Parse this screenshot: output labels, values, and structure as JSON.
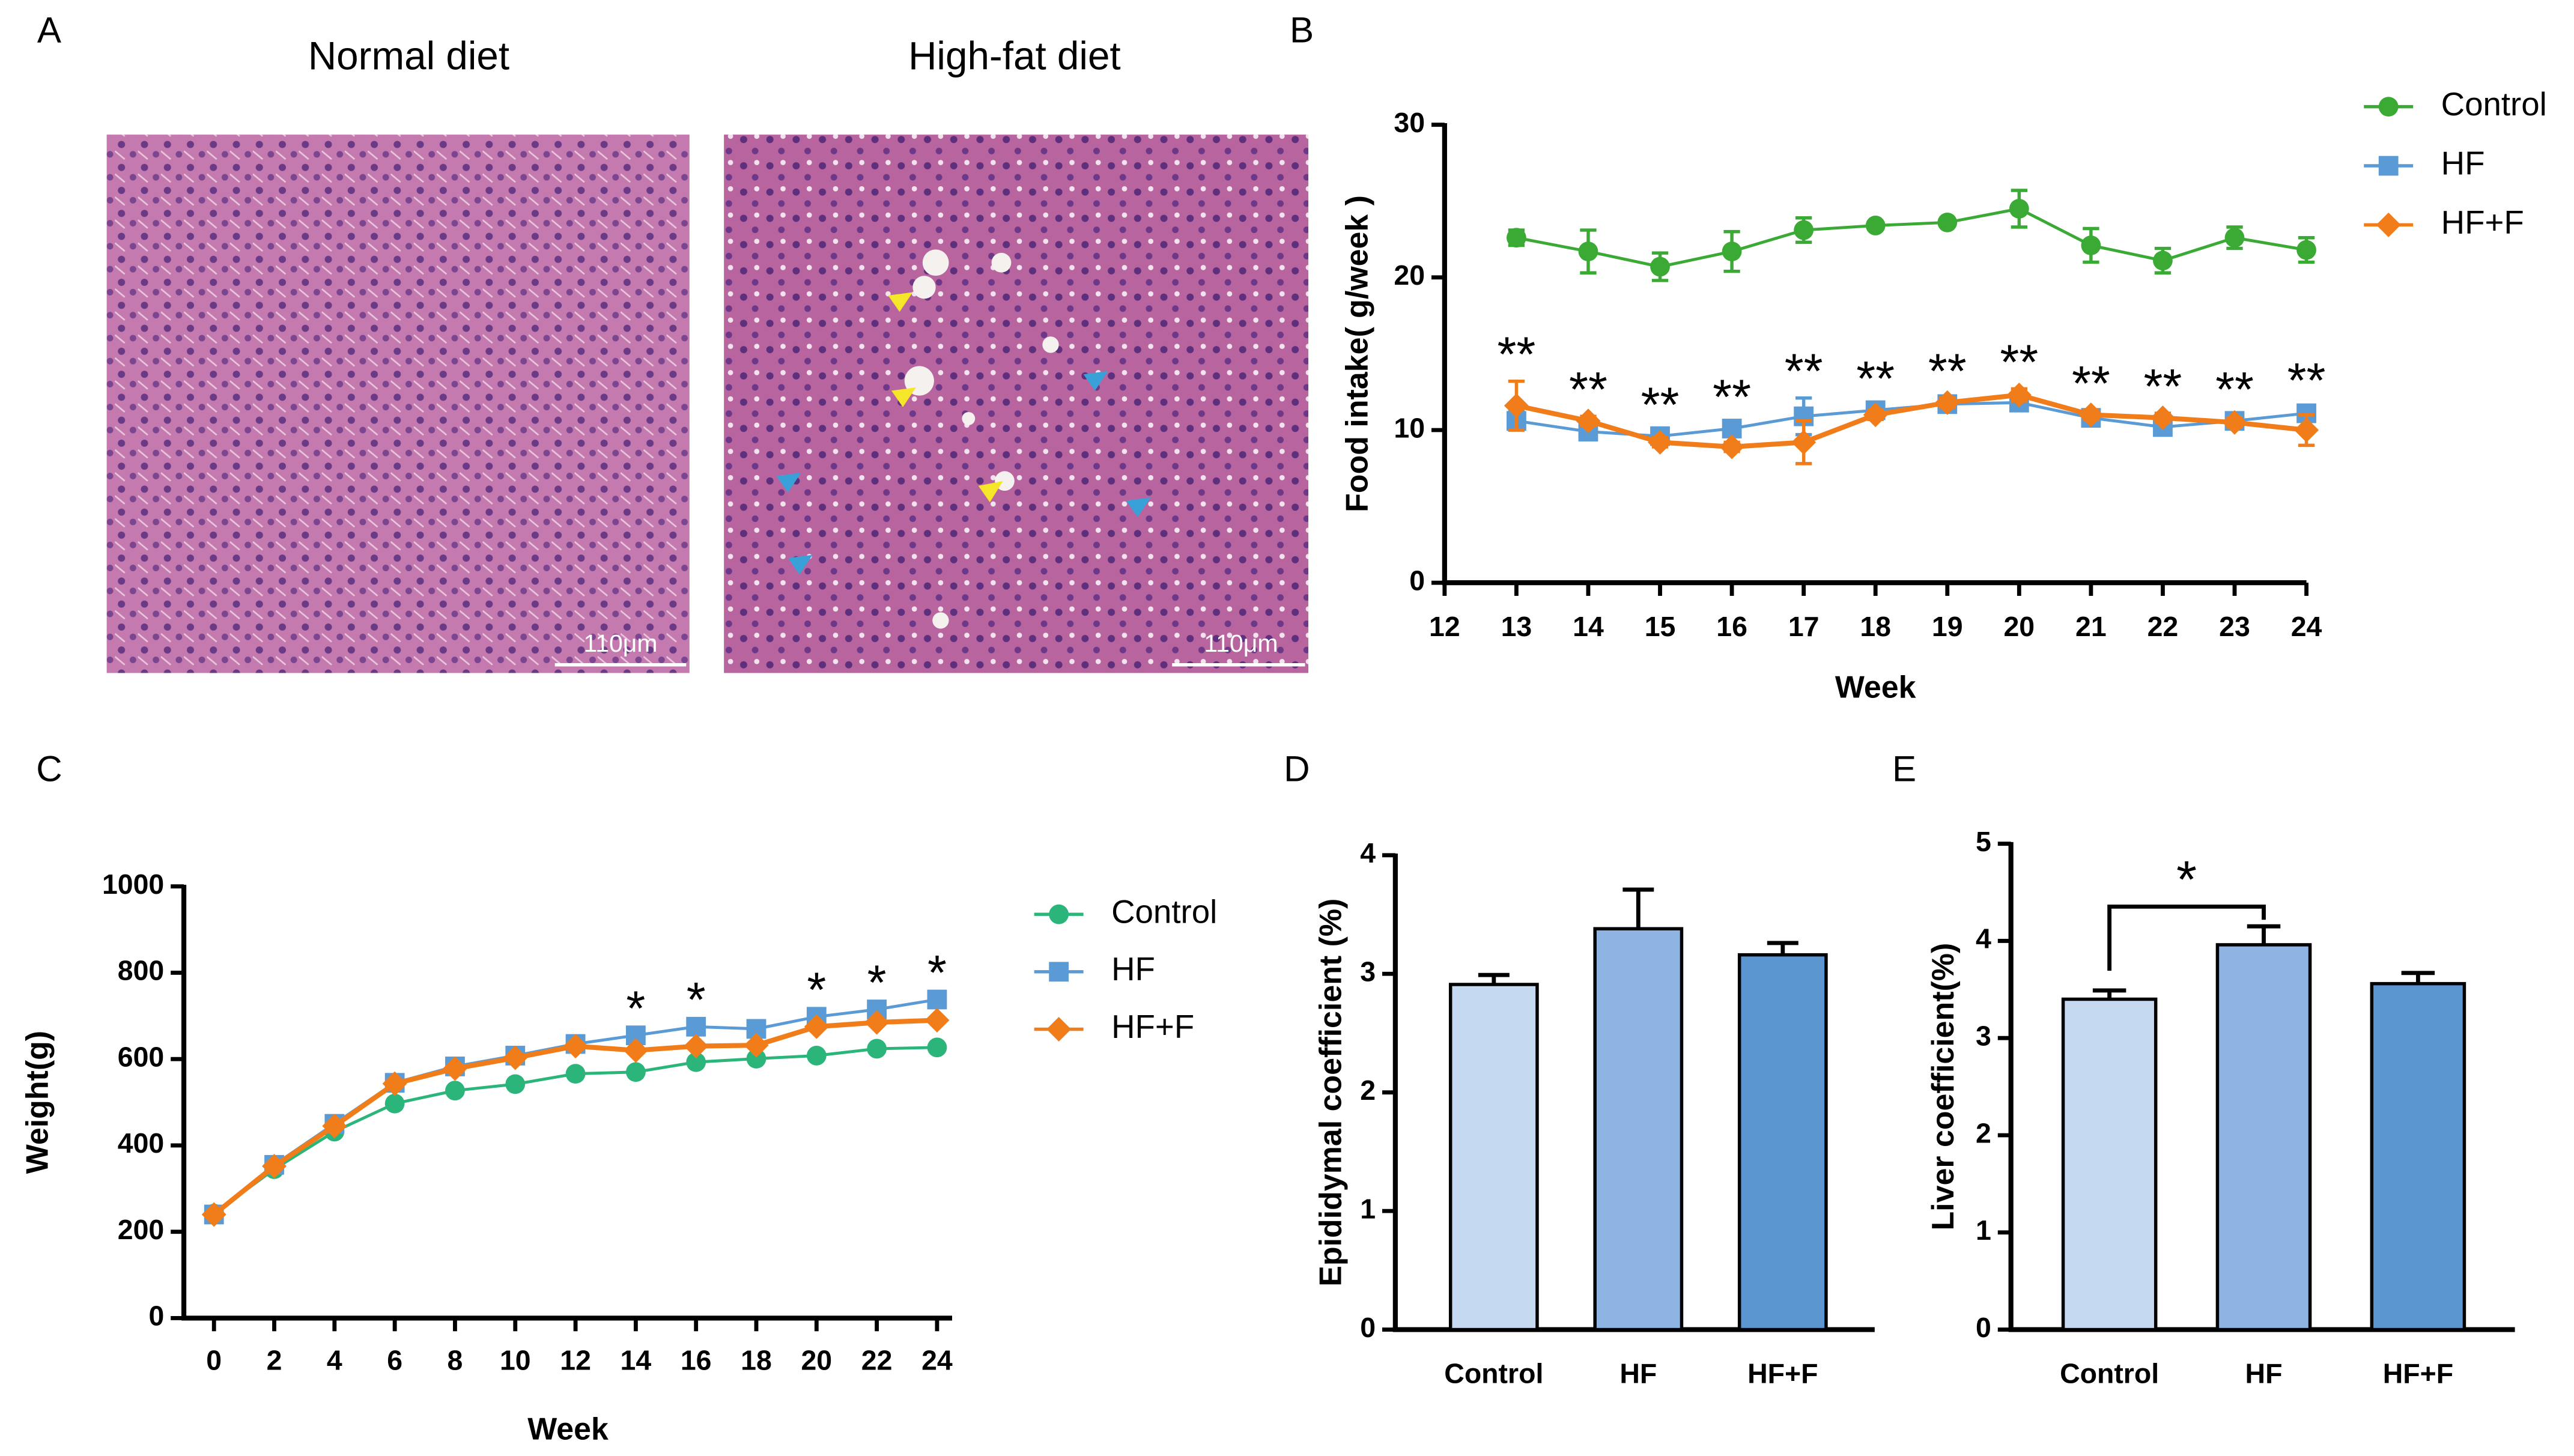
{
  "figure_a": {
    "label": "A",
    "titles": [
      "Normal diet",
      "High-fat diet"
    ],
    "scale_bars": [
      "110μm",
      "110μm"
    ]
  },
  "chart_data": [
    {
      "type": "line",
      "panel_label": "B",
      "x_label": "Week",
      "y_label": "Food intake( g/week )",
      "legend": "right",
      "x": [
        13,
        14,
        15,
        16,
        17,
        18,
        19,
        20,
        21,
        22,
        23,
        24
      ],
      "xlim": [
        12,
        24
      ],
      "xticks": [
        12,
        13,
        14,
        15,
        16,
        17,
        18,
        19,
        20,
        21,
        22,
        23,
        24
      ],
      "ylim": [
        0,
        30
      ],
      "yticks": [
        0,
        10,
        20,
        30
      ],
      "series": [
        {
          "name": "Control",
          "color": "#3aaa35",
          "marker": "circle",
          "values": [
            22.6,
            21.7,
            20.7,
            21.7,
            23.1,
            23.4,
            23.6,
            24.5,
            22.1,
            21.1,
            22.6,
            21.8
          ],
          "errors": [
            0.5,
            1.4,
            0.9,
            1.3,
            0.8,
            0.2,
            0.2,
            1.2,
            1.1,
            0.8,
            0.7,
            0.8
          ]
        },
        {
          "name": "HF",
          "color": "#5b9bd5",
          "marker": "square",
          "values": [
            10.6,
            9.9,
            9.6,
            10.1,
            10.9,
            11.3,
            11.7,
            11.8,
            10.8,
            10.2,
            10.6,
            11.1
          ],
          "errors": [
            0.6,
            0.3,
            0.3,
            0.3,
            1.2,
            0.3,
            0.3,
            0.4,
            0.4,
            0.3,
            0.3,
            0.4
          ]
        },
        {
          "name": "HF+F",
          "color": "#f07d1a",
          "marker": "diamond",
          "values": [
            11.6,
            10.6,
            9.2,
            8.9,
            9.2,
            11.0,
            11.8,
            12.3,
            11.0,
            10.8,
            10.5,
            10.0
          ],
          "errors": [
            1.6,
            0.3,
            0.3,
            0.3,
            1.4,
            0.3,
            0.3,
            0.4,
            0.3,
            0.3,
            0.3,
            1.0
          ]
        }
      ],
      "annotations": [
        {
          "x": 13,
          "text": "**"
        },
        {
          "x": 14,
          "text": "**"
        },
        {
          "x": 15,
          "text": "**"
        },
        {
          "x": 16,
          "text": "**"
        },
        {
          "x": 17,
          "text": "**"
        },
        {
          "x": 18,
          "text": "**"
        },
        {
          "x": 19,
          "text": "**"
        },
        {
          "x": 20,
          "text": "**"
        },
        {
          "x": 21,
          "text": "**"
        },
        {
          "x": 22,
          "text": "**"
        },
        {
          "x": 23,
          "text": "**"
        },
        {
          "x": 24,
          "text": "**"
        }
      ]
    },
    {
      "type": "line",
      "panel_label": "C",
      "x_label": "Week",
      "y_label": "Weight(g)",
      "legend": "right",
      "x": [
        0,
        2,
        4,
        6,
        8,
        10,
        12,
        14,
        16,
        18,
        20,
        22,
        24
      ],
      "xlim": [
        -1,
        24.5
      ],
      "xticks": [
        0,
        2,
        4,
        6,
        8,
        10,
        12,
        14,
        16,
        18,
        20,
        22,
        24
      ],
      "ylim": [
        0,
        1000
      ],
      "yticks": [
        0,
        200,
        400,
        600,
        800,
        1000
      ],
      "series": [
        {
          "name": "Control",
          "color": "#2bb57a",
          "marker": "circle",
          "values": [
            242,
            345,
            432,
            497,
            527,
            542,
            566,
            570,
            593,
            601,
            608,
            624,
            627
          ]
        },
        {
          "name": "HF",
          "color": "#5b9bd5",
          "marker": "square",
          "values": [
            240,
            355,
            450,
            545,
            583,
            608,
            635,
            655,
            675,
            670,
            698,
            715,
            738
          ]
        },
        {
          "name": "HF+F",
          "color": "#f07d1a",
          "marker": "diamond",
          "values": [
            240,
            352,
            445,
            543,
            578,
            603,
            630,
            620,
            630,
            632,
            675,
            685,
            690
          ]
        }
      ],
      "annotations": [
        {
          "x": 14,
          "text": "*"
        },
        {
          "x": 16,
          "text": "*"
        },
        {
          "x": 20,
          "text": "*"
        },
        {
          "x": 22,
          "text": "*"
        },
        {
          "x": 24,
          "text": "*"
        }
      ]
    },
    {
      "type": "bar",
      "panel_label": "D",
      "y_label": "Epididymal coefficient (%)",
      "categories": [
        "Control",
        "HF",
        "HF+F"
      ],
      "values": [
        2.91,
        3.38,
        3.16
      ],
      "errors": [
        0.08,
        0.33,
        0.1
      ],
      "colors": [
        "#c5d9f1",
        "#8db4e2",
        "#5b96d0"
      ],
      "ylim": [
        0,
        4
      ],
      "yticks": [
        0,
        1,
        2,
        3,
        4
      ]
    },
    {
      "type": "bar",
      "panel_label": "E",
      "y_label": "Liver coefficient(%)",
      "categories": [
        "Control",
        "HF",
        "HF+F"
      ],
      "values": [
        3.4,
        3.96,
        3.56
      ],
      "errors": [
        0.09,
        0.19,
        0.11
      ],
      "colors": [
        "#c5d9f1",
        "#8db4e2",
        "#5b96d0"
      ],
      "ylim": [
        0,
        5
      ],
      "yticks": [
        0,
        1,
        2,
        3,
        4,
        5
      ],
      "significance": {
        "from": 0,
        "to": 1,
        "text": "*"
      }
    }
  ]
}
